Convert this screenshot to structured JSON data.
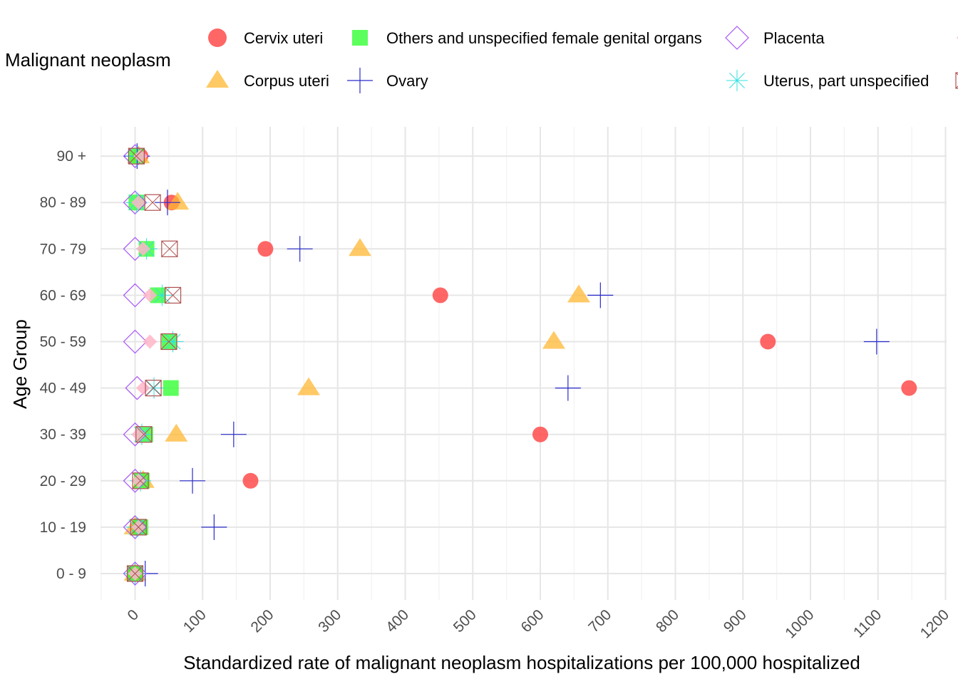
{
  "chart_data": {
    "type": "scatter",
    "title": "",
    "xlabel": "Standardized rate of malignant neoplasm hospitalizations per 100,000 hospitalized",
    "ylabel": "Age Group",
    "xlim": [
      -50,
      1200
    ],
    "x_ticks": [
      0,
      100,
      200,
      300,
      400,
      500,
      600,
      700,
      800,
      900,
      1000,
      1100,
      1200
    ],
    "x_tick_labels": [
      "0",
      "100",
      "200",
      "300",
      "400",
      "500",
      "600",
      "700",
      "800",
      "900",
      "1000",
      "1100",
      "1200"
    ],
    "categories": [
      "0 - 9",
      "10 - 19",
      "20 - 29",
      "30 - 39",
      "40 - 49",
      "50 - 59",
      "60 - 69",
      "70 - 79",
      "80 - 89",
      "90 +"
    ],
    "grid": true,
    "legend_title": "Malignant neoplasm",
    "legend_position": "top",
    "series": [
      {
        "name": "Cervix uteri",
        "shape": "circle",
        "color": "#ff4b4b",
        "values": [
          0,
          5,
          171,
          600,
          1146,
          937,
          452,
          193,
          54,
          8
        ]
      },
      {
        "name": "Corpus uteri",
        "shape": "triangle",
        "color": "#ffb732",
        "values": [
          0,
          0,
          12,
          61,
          257,
          620,
          657,
          333,
          63,
          5
        ]
      },
      {
        "name": "Others and unspecified female genital organs",
        "shape": "square",
        "color": "#33ff33",
        "values": [
          0,
          8,
          10,
          15,
          53,
          51,
          34,
          17,
          2,
          2
        ]
      },
      {
        "name": "Ovary",
        "shape": "plus",
        "color": "#2b2bcc",
        "values": [
          15,
          117,
          85,
          146,
          641,
          1098,
          689,
          244,
          48,
          3
        ]
      },
      {
        "name": "Placenta",
        "shape": "diamond",
        "color": "#a855f7",
        "values": [
          0,
          0,
          0,
          0,
          3,
          0,
          0,
          0,
          0,
          0
        ]
      },
      {
        "name": "Uterus, part unspecified",
        "shape": "asterisk",
        "color": "#33e0e0",
        "values": [
          0,
          2,
          8,
          10,
          28,
          56,
          40,
          17,
          2,
          2
        ]
      },
      {
        "name": "",
        "shape": "diamond-filled",
        "color": "#ffb6c8",
        "values": [
          0,
          5,
          5,
          5,
          12,
          22,
          22,
          12,
          5,
          8
        ]
      },
      {
        "name": "",
        "shape": "square-x",
        "color": "#b05050",
        "values": [
          0,
          5,
          8,
          13,
          27,
          50,
          56,
          51,
          26,
          2
        ]
      }
    ]
  }
}
